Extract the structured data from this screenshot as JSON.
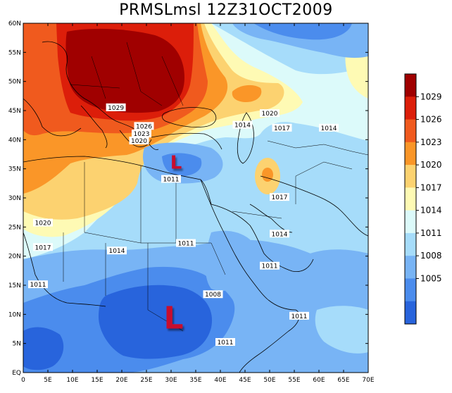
{
  "title": "PRMSLmsl  12Z31OCT2009",
  "lat_ticks": [
    "60N",
    "55N",
    "50N",
    "45N",
    "40N",
    "35N",
    "30N",
    "25N",
    "20N",
    "15N",
    "10N",
    "5N",
    "EQ"
  ],
  "lon_ticks": [
    "0",
    "5E",
    "10E",
    "15E",
    "20E",
    "25E",
    "30E",
    "35E",
    "40E",
    "45E",
    "50E",
    "55E",
    "60E",
    "65E",
    "70E"
  ],
  "isobar_labels": [
    {
      "text": "1029",
      "lon": 18.8,
      "lat": 45.5
    },
    {
      "text": "1026",
      "lon": 24.5,
      "lat": 42.3
    },
    {
      "text": "1023",
      "lon": 24.0,
      "lat": 41.0
    },
    {
      "text": "1020",
      "lon": 23.5,
      "lat": 39.8
    },
    {
      "text": "1020",
      "lon": 50.0,
      "lat": 44.5
    },
    {
      "text": "1014",
      "lon": 44.5,
      "lat": 42.5
    },
    {
      "text": "1017",
      "lon": 52.5,
      "lat": 42.0
    },
    {
      "text": "1014",
      "lon": 62.0,
      "lat": 42.0
    },
    {
      "text": "1011",
      "lon": 30.0,
      "lat": 33.2
    },
    {
      "text": "1017",
      "lon": 52.0,
      "lat": 30.1
    },
    {
      "text": "1020",
      "lon": 4.0,
      "lat": 25.7
    },
    {
      "text": "1017",
      "lon": 4.0,
      "lat": 21.5
    },
    {
      "text": "1014",
      "lon": 19.0,
      "lat": 20.9
    },
    {
      "text": "1011",
      "lon": 33.0,
      "lat": 22.2
    },
    {
      "text": "1014",
      "lon": 52.0,
      "lat": 23.8
    },
    {
      "text": "1011",
      "lon": 50.0,
      "lat": 18.3
    },
    {
      "text": "1011",
      "lon": 3.0,
      "lat": 15.1
    },
    {
      "text": "1008",
      "lon": 38.5,
      "lat": 13.4
    },
    {
      "text": "1011",
      "lon": 56.0,
      "lat": 9.7
    },
    {
      "text": "1011",
      "lon": 41.0,
      "lat": 5.2
    }
  ],
  "lows": [
    {
      "label": "L",
      "lon": 31.0,
      "lat": 36.0,
      "size": "small"
    },
    {
      "label": "L",
      "lon": 30.5,
      "lat": 9.5,
      "size": "large"
    }
  ],
  "colorbar": {
    "labels": [
      "1029",
      "1026",
      "1023",
      "1020",
      "1017",
      "1014",
      "1011",
      "1008",
      "1005"
    ],
    "colors": [
      "#a00000",
      "#dc1e0a",
      "#f05a1e",
      "#fa9628",
      "#fcd270",
      "#fefab4",
      "#dcfafa",
      "#a6dcfa",
      "#78b4f5",
      "#4b8ced",
      "#2864dc"
    ]
  },
  "colors": {
    "c1005": "#2864dc",
    "c1008": "#4b8ced",
    "c1011": "#78b4f5",
    "c1014": "#a6dcfa",
    "c1017": "#dcfafa",
    "c1020": "#fefab4",
    "c1023": "#fcd270",
    "c1026": "#fa9628",
    "c1029": "#f05a1e",
    "c1032": "#dc1e0a",
    "c1035": "#a00000",
    "low_marker": "#c8102e"
  }
}
